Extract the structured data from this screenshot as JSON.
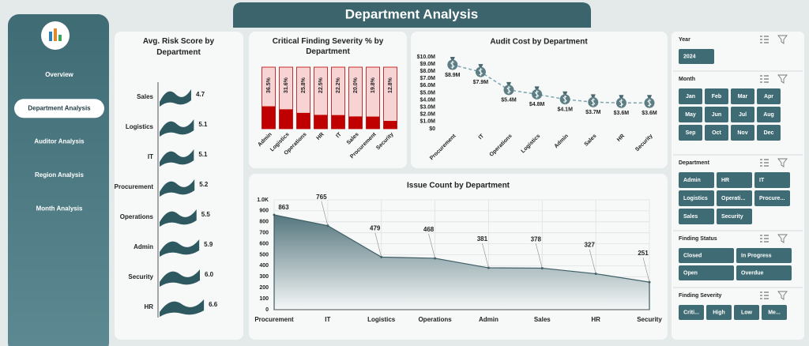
{
  "header": {
    "title": "Department Analysis"
  },
  "nav": [
    "Overview",
    "Department Analysis",
    "Auditor Analysis",
    "Region Analysis",
    "Month Analysis"
  ],
  "active_nav": 1,
  "chart_data": [
    {
      "type": "pictograph",
      "title": "Avg. Risk Score by Department",
      "categories": [
        "Sales",
        "Logistics",
        "IT",
        "Procurement",
        "Operations",
        "Admin",
        "Security",
        "HR"
      ],
      "values": [
        4.7,
        5.1,
        5.1,
        5.2,
        5.5,
        5.9,
        6.0,
        6.6
      ],
      "value_labels": [
        "4.7",
        "5.1",
        "5.1",
        "5.2",
        "5.5",
        "5.9",
        "6.0",
        "6.6"
      ],
      "color": "#2e5961"
    },
    {
      "type": "bar",
      "title": "Critical Finding Severity % by Department",
      "categories": [
        "Admin",
        "Logistics",
        "Operations",
        "HR",
        "IT",
        "Sales",
        "Procurement",
        "Security"
      ],
      "values": [
        36.5,
        31.6,
        25.8,
        22.5,
        22.2,
        20.0,
        19.8,
        12.8
      ],
      "value_labels": [
        "36.5%",
        "31.6%",
        "25.8%",
        "22.5%",
        "22.2%",
        "20.0%",
        "19.8%",
        "12.8%"
      ],
      "ylim": [
        0,
        100
      ],
      "color": "#c00000",
      "track_color": "#f8d3d3"
    },
    {
      "type": "line",
      "title": "Audit Cost by Department",
      "categories": [
        "Procurement",
        "IT",
        "Operations",
        "Logistics",
        "Admin",
        "Sales",
        "HR",
        "Security"
      ],
      "values": [
        8900000,
        7900000,
        5400000,
        4800000,
        4100000,
        3700000,
        3600000,
        3600000
      ],
      "value_labels": [
        "$8.9M",
        "$7.9M",
        "$5.4M",
        "$4.8M",
        "$4.1M",
        "$3.7M",
        "$3.6M",
        "$3.6M"
      ],
      "ylim": [
        0,
        10000000
      ],
      "yticks": [
        {
          "value": 0,
          "label": "$0"
        },
        {
          "value": 1000000,
          "label": "$1.0M"
        },
        {
          "value": 2000000,
          "label": "$2.0M"
        },
        {
          "value": 3000000,
          "label": "$3.0M"
        },
        {
          "value": 4000000,
          "label": "$4.0M"
        },
        {
          "value": 5000000,
          "label": "$5.0M"
        },
        {
          "value": 6000000,
          "label": "$6.0M"
        },
        {
          "value": 7000000,
          "label": "$7.0M"
        },
        {
          "value": 8000000,
          "label": "$8.0M"
        },
        {
          "value": 9000000,
          "label": "$9.0M"
        },
        {
          "value": 10000000,
          "label": "$10.0M"
        }
      ],
      "color": "#5e7e86"
    },
    {
      "type": "area",
      "title": "Issue Count by Department",
      "categories": [
        "Procurement",
        "IT",
        "Logistics",
        "Operations",
        "Admin",
        "Sales",
        "HR",
        "Security"
      ],
      "values": [
        863,
        765,
        479,
        468,
        381,
        378,
        327,
        251
      ],
      "ylim": [
        0,
        1000
      ],
      "yticks": [
        0,
        100,
        200,
        300,
        400,
        500,
        600,
        700,
        800,
        900,
        {
          "value": 1000,
          "label": "1.0K"
        }
      ],
      "grid": true,
      "color": "#3d5d65"
    }
  ],
  "slicers": [
    {
      "title": "Year",
      "items": [
        "2024"
      ]
    },
    {
      "title": "Month",
      "items": [
        "Jan",
        "Feb",
        "Mar",
        "Apr",
        "May",
        "Jun",
        "Jul",
        "Aug",
        "Sep",
        "Oct",
        "Nov",
        "Dec"
      ]
    },
    {
      "title": "Department",
      "items": [
        "Admin",
        "HR",
        "IT",
        "Logistics",
        "Operati...",
        "Procure...",
        "Sales",
        "Security"
      ]
    },
    {
      "title": "Finding Status",
      "items": [
        "Closed",
        "In Progress",
        "Open",
        "Overdue"
      ]
    },
    {
      "title": "Finding Severity",
      "items": [
        "Criti...",
        "High",
        "Low",
        "Me..."
      ]
    }
  ]
}
